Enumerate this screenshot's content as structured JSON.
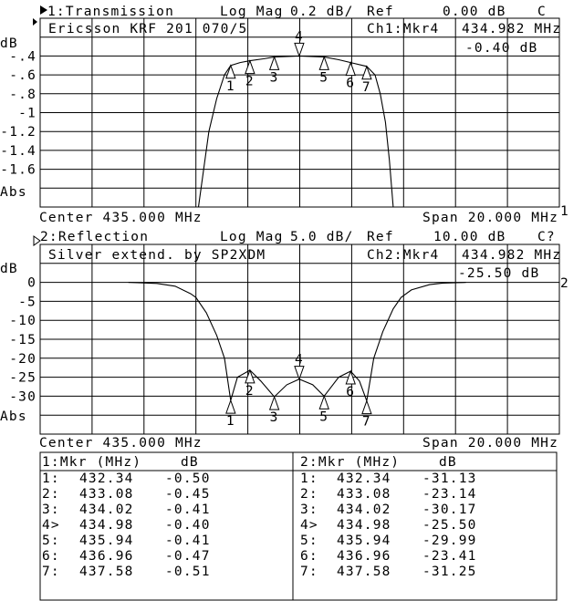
{
  "colors": {
    "background": "#ffffff",
    "ink": "#000000"
  },
  "chart_data": [
    {
      "type": "line",
      "channel_title": "1:Transmission",
      "active_channel_icon": "filled-triangle-right-icon",
      "format": "Log Mag",
      "scale": "0.2 dB/",
      "ref_label": "Ref",
      "ref_value": "0.00 dB",
      "status": "C",
      "subtitle": "Ericsson KRF 201 070/5",
      "marker_readout_label": "Ch1:Mkr4",
      "marker_readout_freq": "434.982 MHz",
      "marker_readout_value": "-0.40 dB",
      "ylabel": "dB",
      "yformat_label": "Abs",
      "ref_position_label": "1",
      "ytick_labels": [
        "-.4",
        "-.6",
        "-.8",
        "-1",
        "-1.2",
        "-1.4",
        "-1.6"
      ],
      "ytick_values": [
        -0.4,
        -0.6,
        -0.8,
        -1.0,
        -1.2,
        -1.4,
        -1.6
      ],
      "ylim": [
        -2.0,
        0.0
      ],
      "xlim_mhz": [
        425,
        445
      ],
      "center_label": "Center 435.000 MHz",
      "span_label": "Span 20.000 MHz",
      "grid": true,
      "active_marker": 4,
      "trace": {
        "x": [
          425,
          431.1,
          431.3,
          431.5,
          431.8,
          432.1,
          432.34,
          432.7,
          433.08,
          433.6,
          434.02,
          434.98,
          435.94,
          436.5,
          436.96,
          437.58,
          437.9,
          438.1,
          438.3,
          438.45,
          438.6,
          445
        ],
        "y": [
          -2.1,
          -2.05,
          -1.6,
          -1.2,
          -0.85,
          -0.6,
          -0.5,
          -0.47,
          -0.45,
          -0.43,
          -0.41,
          -0.4,
          -0.41,
          -0.44,
          -0.47,
          -0.51,
          -0.6,
          -0.8,
          -1.1,
          -1.5,
          -2.05,
          -2.1
        ]
      },
      "markers": [
        {
          "n": "1",
          "freq": 432.34,
          "value": -0.5
        },
        {
          "n": "2",
          "freq": 433.08,
          "value": -0.45
        },
        {
          "n": "3",
          "freq": 434.02,
          "value": -0.41
        },
        {
          "n": "4",
          "freq": 434.98,
          "value": -0.4
        },
        {
          "n": "5",
          "freq": 435.94,
          "value": -0.41
        },
        {
          "n": "6",
          "freq": 436.96,
          "value": -0.47
        },
        {
          "n": "7",
          "freq": 437.58,
          "value": -0.51
        }
      ]
    },
    {
      "type": "line",
      "channel_title": "2:Reflection",
      "active_channel_icon": "outline-triangle-right-icon",
      "format": "Log Mag",
      "scale": "5.0 dB/",
      "ref_label": "Ref",
      "ref_value": "10.00 dB",
      "status": "C?",
      "subtitle": "Silver extend. by SP2XDM",
      "marker_readout_label": "Ch2:Mkr4",
      "marker_readout_freq": "434.982 MHz",
      "marker_readout_value": "-25.50 dB",
      "ylabel": "dB",
      "yformat_label": "Abs",
      "ref_position_label": "2",
      "ytick_labels": [
        "0",
        "-5",
        "-10",
        "-15",
        "-20",
        "-25",
        "-30"
      ],
      "ytick_values": [
        0,
        -5,
        -10,
        -15,
        -20,
        -25,
        -30
      ],
      "ylim": [
        -40,
        10
      ],
      "xlim_mhz": [
        425,
        445
      ],
      "center_label": "Center 435.000 MHz",
      "span_label": "Span 20.000 MHz",
      "grid": true,
      "active_marker": 4,
      "trace": {
        "x": [
          428.4,
          429.5,
          430.2,
          430.8,
          431.0,
          431.4,
          431.8,
          432.1,
          432.34,
          432.6,
          433.08,
          433.5,
          434.02,
          434.5,
          434.98,
          435.5,
          435.94,
          436.5,
          436.96,
          437.3,
          437.58,
          437.85,
          438.2,
          438.6,
          438.9,
          439.3,
          440.0,
          440.5,
          441.4
        ],
        "y": [
          0,
          -0.3,
          -1,
          -3,
          -4,
          -8,
          -14,
          -20,
          -31.13,
          -25,
          -23.14,
          -26,
          -30.17,
          -27,
          -25.5,
          -27,
          -29.99,
          -25,
          -23.41,
          -26,
          -31.25,
          -20,
          -13,
          -7,
          -4,
          -2,
          -0.6,
          -0.2,
          0
        ]
      },
      "markers": [
        {
          "n": "1",
          "freq": 432.34,
          "value": -31.13
        },
        {
          "n": "2",
          "freq": 433.08,
          "value": -23.14
        },
        {
          "n": "3",
          "freq": 434.02,
          "value": -30.17
        },
        {
          "n": "4",
          "freq": 434.98,
          "value": -25.5
        },
        {
          "n": "5",
          "freq": 435.94,
          "value": -29.99
        },
        {
          "n": "6",
          "freq": 436.96,
          "value": -23.41
        },
        {
          "n": "7",
          "freq": 437.58,
          "value": -31.25
        }
      ]
    }
  ],
  "marker_table": {
    "ch1_header": "1:Mkr (MHz)",
    "ch1_unit": "dB",
    "ch2_header": "2:Mkr (MHz)",
    "ch2_unit": "dB",
    "ch1_rows": [
      {
        "idx": "1:",
        "freq": "432.34",
        "value": "-0.50"
      },
      {
        "idx": "2:",
        "freq": "433.08",
        "value": "-0.45"
      },
      {
        "idx": "3:",
        "freq": "434.02",
        "value": "-0.41"
      },
      {
        "idx": "4>",
        "freq": "434.98",
        "value": "-0.40"
      },
      {
        "idx": "5:",
        "freq": "435.94",
        "value": "-0.41"
      },
      {
        "idx": "6:",
        "freq": "436.96",
        "value": "-0.47"
      },
      {
        "idx": "7:",
        "freq": "437.58",
        "value": "-0.51"
      }
    ],
    "ch2_rows": [
      {
        "idx": "1:",
        "freq": "432.34",
        "value": "-31.13"
      },
      {
        "idx": "2:",
        "freq": "433.08",
        "value": "-23.14"
      },
      {
        "idx": "3:",
        "freq": "434.02",
        "value": "-30.17"
      },
      {
        "idx": "4>",
        "freq": "434.98",
        "value": "-25.50"
      },
      {
        "idx": "5:",
        "freq": "435.94",
        "value": "-29.99"
      },
      {
        "idx": "6:",
        "freq": "436.96",
        "value": "-23.41"
      },
      {
        "idx": "7:",
        "freq": "437.58",
        "value": "-31.25"
      }
    ]
  }
}
